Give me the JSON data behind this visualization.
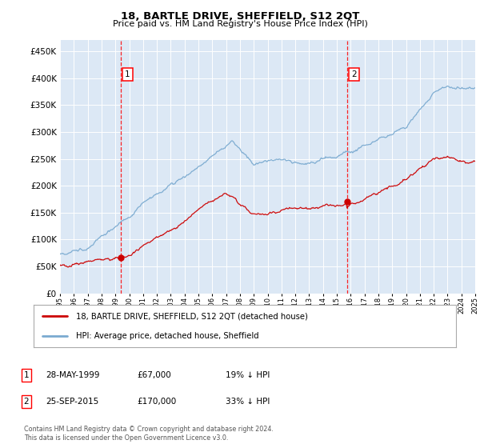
{
  "title": "18, BARTLE DRIVE, SHEFFIELD, S12 2QT",
  "subtitle": "Price paid vs. HM Land Registry's House Price Index (HPI)",
  "plot_bg_color": "#dce8f5",
  "legend_line1": "18, BARTLE DRIVE, SHEFFIELD, S12 2QT (detached house)",
  "legend_line2": "HPI: Average price, detached house, Sheffield",
  "annotation1_label": "1",
  "annotation1_date": "28-MAY-1999",
  "annotation1_price": "£67,000",
  "annotation1_hpi": "19% ↓ HPI",
  "annotation2_label": "2",
  "annotation2_date": "25-SEP-2015",
  "annotation2_price": "£170,000",
  "annotation2_hpi": "33% ↓ HPI",
  "footer": "Contains HM Land Registry data © Crown copyright and database right 2024.\nThis data is licensed under the Open Government Licence v3.0.",
  "ylim": [
    0,
    470000
  ],
  "yticks": [
    0,
    50000,
    100000,
    150000,
    200000,
    250000,
    300000,
    350000,
    400000,
    450000
  ],
  "sale1_year": 1999.38,
  "sale1_price": 67000,
  "sale2_year": 2015.73,
  "sale2_price": 170000,
  "red_line_color": "#cc0000",
  "blue_line_color": "#7aaad0"
}
